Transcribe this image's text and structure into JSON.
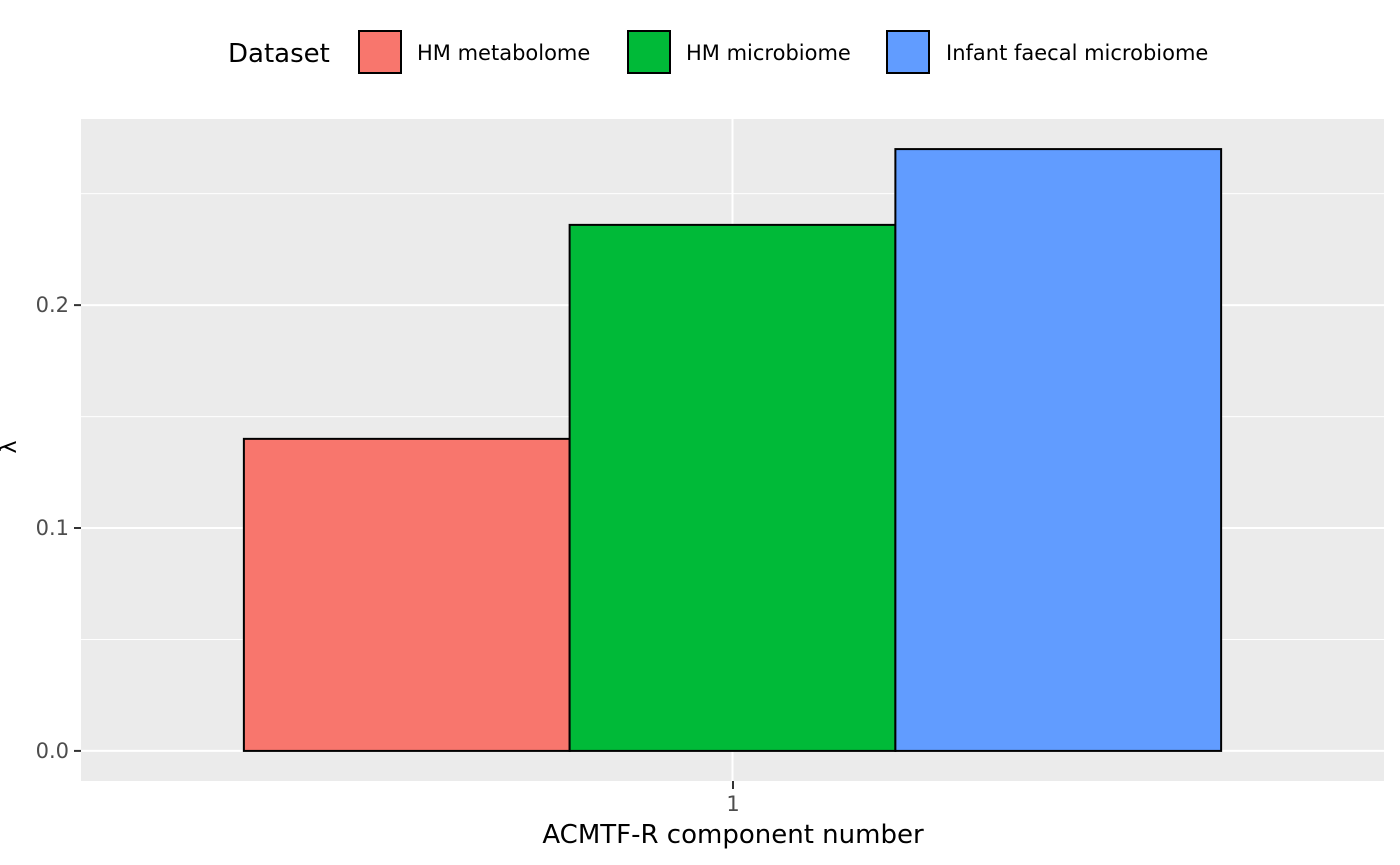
{
  "chart_data": {
    "type": "bar",
    "categories": [
      "1"
    ],
    "series": [
      {
        "name": "HM metabolome",
        "values": [
          0.14
        ],
        "color": "#F8766D"
      },
      {
        "name": "HM microbiome",
        "values": [
          0.236
        ],
        "color": "#00BA38"
      },
      {
        "name": "Infant faecal microbiome",
        "values": [
          0.27
        ],
        "color": "#619CFF"
      }
    ],
    "legend_title": "Dataset",
    "legend_position": "top",
    "xlabel": "ACMTF-R component number",
    "ylabel": "λ",
    "yticks": [
      "0.0",
      "0.1",
      "0.2"
    ],
    "ytick_values": [
      0,
      0.1,
      0.2
    ],
    "ylim": [
      -0.0135,
      0.2835
    ],
    "grid": true,
    "panel_color": "#EBEBEB"
  }
}
